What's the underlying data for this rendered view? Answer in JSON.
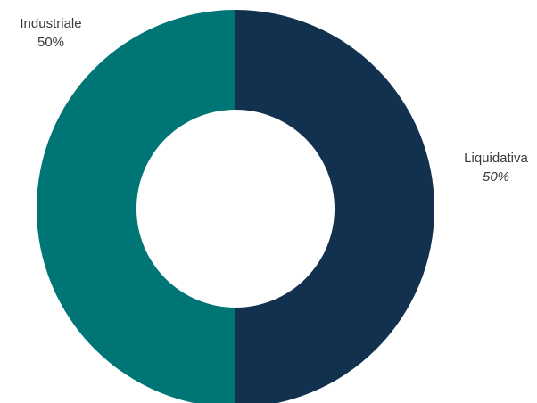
{
  "chart_data": {
    "type": "pie",
    "style": "donut",
    "slices": [
      {
        "label": "Liquidativa",
        "value": 50,
        "display": "50%",
        "color": "#11314f",
        "italic_pct": true
      },
      {
        "label": "Industriale",
        "value": 50,
        "display": "50%",
        "color": "#007575",
        "italic_pct": false
      }
    ],
    "start_angle_deg": 0,
    "direction": "clockwise",
    "background": "#ffffff",
    "legend": "none"
  }
}
